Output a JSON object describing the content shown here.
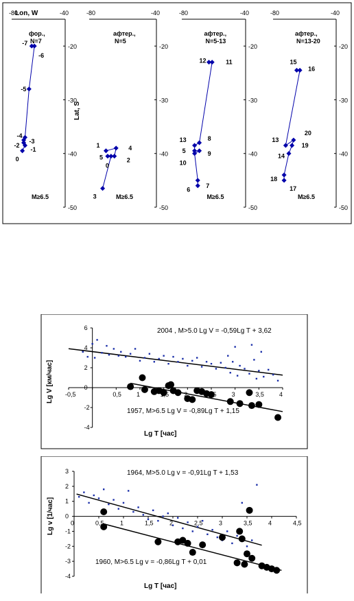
{
  "top_panel": {
    "lon_label": "Lon, W",
    "lat_label": "Lat, S",
    "magnitude_label": "M≥6.5",
    "x_ticks": [
      "-80",
      "-40"
    ],
    "y_ticks": [
      "-20",
      "-30",
      "-40",
      "-50"
    ],
    "color": "#0000aa"
  },
  "chart_data": [
    {
      "type": "line",
      "title": "фор., N=7",
      "xlim": [
        -80,
        -40
      ],
      "ylim": [
        -50,
        -15
      ],
      "series": [
        {
          "labels": [
            "-7",
            "-6",
            "-5",
            "-4",
            "-3",
            "-2",
            "-1",
            "0"
          ],
          "x": [
            -65,
            -63,
            -67,
            -70,
            -71,
            -71,
            -70,
            -72
          ],
          "y": [
            -20,
            -20,
            -28,
            -37,
            -37.5,
            -38,
            -38.5,
            -39.5
          ]
        }
      ]
    },
    {
      "type": "line",
      "title": "афтер., N=5",
      "xlim": [
        -80,
        -40
      ],
      "ylim": [
        -50,
        -15
      ],
      "series": [
        {
          "labels": [
            "1",
            "4",
            "2",
            "5",
            "0",
            "3"
          ],
          "x": [
            -70,
            -64,
            -65,
            -69,
            -67,
            -72
          ],
          "y": [
            -39.5,
            -39,
            -40.5,
            -40.5,
            -40.5,
            -46.5
          ]
        }
      ]
    },
    {
      "type": "line",
      "title": "афтер., N=5-13",
      "xlim": [
        -80,
        -40
      ],
      "ylim": [
        -50,
        -15
      ],
      "series": [
        {
          "labels": [
            "12",
            "11",
            "8",
            "13",
            "5",
            "9",
            "10",
            "7",
            "6"
          ],
          "x": [
            -63,
            -61,
            -69,
            -72,
            -72,
            -69,
            -72,
            -70,
            -70
          ],
          "y": [
            -23,
            -23,
            -38,
            -38.5,
            -39.5,
            -39.5,
            -40,
            -45,
            -46
          ]
        }
      ]
    },
    {
      "type": "line",
      "title": "афтер., N=13-20",
      "xlim": [
        -80,
        -40
      ],
      "ylim": [
        -50,
        -15
      ],
      "series": [
        {
          "labels": [
            "15",
            "16",
            "13",
            "20",
            "19",
            "14",
            "18",
            "17"
          ],
          "x": [
            -65,
            -63,
            -72,
            -67,
            -68,
            -70,
            -73,
            -73
          ],
          "y": [
            -24.5,
            -24.5,
            -38.5,
            -37.5,
            -38.5,
            -40,
            -44,
            -45
          ]
        }
      ]
    },
    {
      "type": "scatter",
      "xlabel": "Lg T [час]",
      "ylabel": "Lg V [км/час]",
      "xlim": [
        -0.5,
        4
      ],
      "ylim": [
        -4,
        6
      ],
      "x_ticks": [
        "-0,5",
        "0",
        "0,5",
        "1",
        "1,5",
        "2",
        "2,5",
        "3",
        "3,5",
        "4"
      ],
      "y_ticks": [
        "-4",
        "-2",
        "0",
        "2",
        "4",
        "6"
      ],
      "annotations": [
        "2004 , M>5.0   Lg V = -0,59Lg T + 3,62",
        "1957, M>6.5   Lg V = -0,89Lg T + 1,15"
      ],
      "series": [
        {
          "x": [
            -0.2,
            -0.1,
            0,
            0.05,
            0.1,
            0.2,
            0.3,
            0.35,
            0.45,
            0.55,
            0.6,
            0.7,
            0.8,
            0.9,
            1,
            1.1,
            1.2,
            1.3,
            1.4,
            1.5,
            1.6,
            1.7,
            1.8,
            1.9,
            2,
            2.1,
            2.2,
            2.3,
            2.4,
            2.5,
            2.6,
            2.7,
            2.8,
            2.85,
            2.9,
            2.95,
            3,
            3.05,
            3.1,
            3.2,
            3.3,
            3.35,
            3.4,
            3.45,
            3.5,
            3.55,
            3.6,
            3.7,
            3.8,
            3.9
          ],
          "y": [
            3.6,
            3.1,
            4.4,
            3,
            4.8,
            3.5,
            4.2,
            3.3,
            3.9,
            3.2,
            3.6,
            3.1,
            3.4,
            3.9,
            2.7,
            3,
            3.4,
            2.6,
            2.9,
            3.2,
            2.4,
            3.1,
            2.6,
            2.9,
            2.2,
            2.7,
            3,
            2.1,
            2.6,
            2.4,
            1.9,
            2.5,
            2,
            3.2,
            1.5,
            2.6,
            4.1,
            1.2,
            2.2,
            1.9,
            1.4,
            4.3,
            2.8,
            0.9,
            1.7,
            3.6,
            1.1,
            1.8,
            1.3,
            0.7
          ]
        },
        {
          "x": [
            0.8,
            1.05,
            1.1,
            1.3,
            1.4,
            1.5,
            1.6,
            1.65,
            1.7,
            1.8,
            2,
            2.1,
            2.2,
            2.3,
            2.4,
            2.5,
            2.9,
            3.1,
            3.3,
            3.35,
            3.5,
            3.9
          ],
          "y": [
            0.1,
            1,
            -0.2,
            -0.4,
            -0.3,
            -0.5,
            0.2,
            0.3,
            -0.3,
            -0.5,
            -1.1,
            -1.2,
            -0.3,
            -0.4,
            -0.6,
            -0.7,
            -1.4,
            -1.6,
            -0.5,
            -1.8,
            -1.7,
            -3
          ]
        }
      ]
    },
    {
      "type": "scatter",
      "xlabel": "Lg T [час]",
      "ylabel": "Lg v [1/час]",
      "xlim": [
        0,
        4.5
      ],
      "ylim": [
        -4,
        3
      ],
      "x_ticks": [
        "0",
        "0,5",
        "1",
        "1,5",
        "2",
        "2,5",
        "3",
        "3,5",
        "4",
        "4,5"
      ],
      "y_ticks": [
        "-4",
        "-3",
        "-2",
        "-1",
        "0",
        "1",
        "2",
        "3"
      ],
      "annotations": [
        "1964, M>5.0         Lg v = -0,91Lg T + 1,53",
        "1960,  M>6.5    Lg v = -0,86Lg T + 0,01"
      ],
      "series": [
        {
          "x": [
            0.1,
            0.2,
            0.3,
            0.4,
            0.5,
            0.6,
            0.7,
            0.8,
            0.9,
            1,
            1.1,
            1.2,
            1.3,
            1.4,
            1.5,
            1.6,
            1.7,
            1.8,
            1.9,
            2,
            2.1,
            2.2,
            2.3,
            2.4,
            2.5,
            2.6,
            2.7,
            2.8,
            2.9,
            3,
            3.1,
            3.2,
            3.3,
            3.4,
            3.5,
            3.6,
            3.7
          ],
          "y": [
            1.3,
            1.6,
            0.9,
            1.4,
            1.2,
            1.8,
            0.8,
            1.1,
            0.5,
            0.9,
            1.7,
            0.3,
            0.6,
            0.1,
            -0.2,
            0.4,
            -0.3,
            0,
            0.2,
            -0.6,
            -0.1,
            -0.8,
            -0.4,
            -1,
            -0.7,
            -0.3,
            -1.2,
            -0.9,
            -1.4,
            -1.6,
            -1,
            -1.8,
            -1.3,
            0.9,
            -2,
            -1.6,
            2.1
          ]
        },
        {
          "x": [
            0.6,
            0.6,
            1.7,
            2.1,
            2.2,
            2.3,
            2.4,
            2.6,
            3,
            3.3,
            3.35,
            3.4,
            3.45,
            3.5,
            3.55,
            3.6,
            3.8,
            3.9,
            4,
            4.1
          ],
          "y": [
            0.3,
            -0.7,
            -1.7,
            -1.7,
            -1.6,
            -1.8,
            -2.4,
            -1.9,
            -1.4,
            -3.1,
            -1,
            -1.5,
            -3.2,
            -2.5,
            0.4,
            -2.8,
            -3.3,
            -3.4,
            -3.5,
            -3.6
          ]
        }
      ]
    }
  ]
}
